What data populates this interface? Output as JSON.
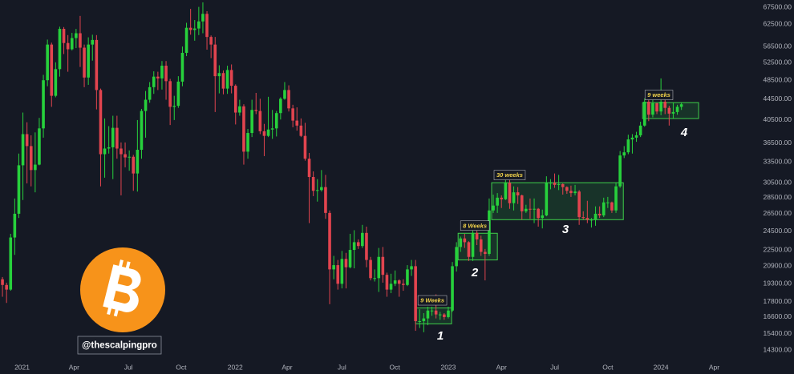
{
  "chart_data": {
    "type": "candlestick",
    "x": [
      0,
      1,
      2,
      3,
      4,
      5,
      6,
      7,
      8,
      9,
      10,
      11,
      12,
      13,
      14,
      15,
      16,
      17,
      18,
      19,
      20,
      21,
      22,
      23,
      24,
      25,
      26,
      27,
      28,
      29,
      30,
      31,
      32,
      33,
      34,
      35,
      36,
      37,
      38,
      39,
      40,
      41,
      42,
      43,
      44,
      45,
      46,
      47,
      48,
      49,
      50,
      51,
      52,
      53,
      54,
      55,
      56,
      57,
      58,
      59,
      60,
      61,
      62,
      63,
      64,
      65,
      66,
      67,
      68,
      69,
      70,
      71,
      72,
      73,
      74,
      75,
      76,
      77,
      78,
      79,
      80,
      81,
      82,
      83,
      84,
      85,
      86,
      87,
      88,
      89,
      90,
      91,
      92,
      93,
      94,
      95,
      96,
      97,
      98,
      99,
      100,
      101,
      102,
      103,
      104,
      105,
      106,
      107,
      108,
      109,
      110,
      111,
      112,
      113,
      114,
      115,
      116,
      117,
      118,
      119,
      120,
      121,
      122,
      123,
      124,
      125,
      126,
      127,
      128,
      129,
      130,
      131,
      132,
      133,
      134,
      135,
      136,
      137,
      138,
      139,
      140,
      141,
      142,
      143,
      144,
      145,
      146,
      147,
      148,
      149,
      150,
      151,
      152,
      153,
      154,
      155,
      156,
      157,
      158,
      159,
      160,
      161,
      162,
      163,
      164,
      165,
      166
    ],
    "candles": [
      [
        19700,
        19900,
        18200,
        19200
      ],
      [
        19200,
        19400,
        17700,
        18800
      ],
      [
        18800,
        24200,
        18700,
        23800
      ],
      [
        23800,
        28400,
        22000,
        26500
      ],
      [
        26500,
        34800,
        26000,
        33000
      ],
      [
        33000,
        41900,
        28200,
        38000
      ],
      [
        38000,
        40100,
        30400,
        36000
      ],
      [
        36000,
        37800,
        30000,
        32300
      ],
      [
        32300,
        38300,
        29200,
        33100
      ],
      [
        33100,
        40900,
        33000,
        39000
      ],
      [
        39000,
        49700,
        37400,
        48500
      ],
      [
        48500,
        58300,
        47200,
        57000
      ],
      [
        57000,
        57500,
        43000,
        45200
      ],
      [
        45200,
        52600,
        44900,
        51000
      ],
      [
        51000,
        61800,
        49300,
        61200
      ],
      [
        61200,
        61700,
        54600,
        57400
      ],
      [
        57400,
        59500,
        50400,
        55800
      ],
      [
        55800,
        60100,
        55500,
        58700
      ],
      [
        58700,
        61200,
        56100,
        60000
      ],
      [
        60000,
        64900,
        51500,
        56200
      ],
      [
        56200,
        57000,
        47000,
        49100
      ],
      [
        49100,
        58900,
        47500,
        57000
      ],
      [
        57000,
        59600,
        53000,
        58200
      ],
      [
        58200,
        59500,
        42500,
        46400
      ],
      [
        46400,
        46700,
        30000,
        34700
      ],
      [
        34700,
        40800,
        31200,
        35600
      ],
      [
        35600,
        39400,
        34800,
        35800
      ],
      [
        35800,
        41300,
        31000,
        39100
      ],
      [
        39100,
        41300,
        34000,
        35600
      ],
      [
        35600,
        36600,
        28800,
        34700
      ],
      [
        34700,
        36600,
        32700,
        34200
      ],
      [
        34200,
        35300,
        32200,
        34300
      ],
      [
        34300,
        34600,
        29400,
        31800
      ],
      [
        31800,
        40500,
        29300,
        35400
      ],
      [
        35400,
        42600,
        34000,
        42200
      ],
      [
        42200,
        46200,
        37400,
        44400
      ],
      [
        44400,
        48100,
        43800,
        47000
      ],
      [
        47000,
        50500,
        45600,
        49300
      ],
      [
        49300,
        50400,
        46400,
        48900
      ],
      [
        48900,
        52900,
        46500,
        51800
      ],
      [
        51800,
        52900,
        44400,
        48300
      ],
      [
        48300,
        48800,
        39600,
        43000
      ],
      [
        43000,
        45200,
        40500,
        43200
      ],
      [
        43200,
        49400,
        42800,
        48200
      ],
      [
        48200,
        56500,
        47200,
        54900
      ],
      [
        54900,
        62900,
        54100,
        61500
      ],
      [
        61500,
        67000,
        59600,
        60900
      ],
      [
        60900,
        63700,
        58000,
        61300
      ],
      [
        61300,
        67600,
        59500,
        63300
      ],
      [
        63300,
        69000,
        60000,
        65500
      ],
      [
        65500,
        66300,
        55700,
        59000
      ],
      [
        59000,
        59400,
        53600,
        57000
      ],
      [
        57000,
        59000,
        42000,
        49400
      ],
      [
        49400,
        51900,
        45700,
        50100
      ],
      [
        50100,
        50700,
        45500,
        46700
      ],
      [
        46700,
        51800,
        45600,
        50800
      ],
      [
        50800,
        52100,
        45700,
        47300
      ],
      [
        47300,
        47600,
        39700,
        41900
      ],
      [
        41900,
        44400,
        41300,
        43100
      ],
      [
        43100,
        43500,
        33100,
        35100
      ],
      [
        35100,
        38900,
        34000,
        38200
      ],
      [
        38200,
        44400,
        37500,
        42400
      ],
      [
        42400,
        45800,
        41600,
        42200
      ],
      [
        42200,
        44600,
        38000,
        38500
      ],
      [
        38500,
        39800,
        34400,
        37700
      ],
      [
        37700,
        45000,
        37500,
        38800
      ],
      [
        38800,
        42400,
        37200,
        39000
      ],
      [
        39000,
        42200,
        37600,
        41800
      ],
      [
        41800,
        44900,
        40600,
        44600
      ],
      [
        44600,
        48100,
        44400,
        46400
      ],
      [
        46400,
        47400,
        42100,
        42700
      ],
      [
        42700,
        43400,
        39200,
        40400
      ],
      [
        40400,
        42900,
        38600,
        39500
      ],
      [
        39500,
        40800,
        37500,
        37700
      ],
      [
        37700,
        40000,
        33700,
        34000
      ],
      [
        34000,
        34900,
        25400,
        31300
      ],
      [
        31300,
        32100,
        28700,
        29400
      ],
      [
        29400,
        31000,
        28000,
        29500
      ],
      [
        29500,
        32300,
        29300,
        29900
      ],
      [
        29900,
        31600,
        25900,
        26600
      ],
      [
        26600,
        26900,
        17600,
        20600
      ],
      [
        20600,
        21900,
        19700,
        21000
      ],
      [
        21000,
        21500,
        18800,
        19300
      ],
      [
        19300,
        22400,
        18900,
        21600
      ],
      [
        21600,
        22200,
        18900,
        20800
      ],
      [
        20800,
        24200,
        20700,
        22500
      ],
      [
        22500,
        24600,
        20700,
        23300
      ],
      [
        23300,
        23600,
        22600,
        22900
      ],
      [
        22900,
        25200,
        22700,
        24300
      ],
      [
        24300,
        25000,
        20800,
        21500
      ],
      [
        21500,
        21800,
        19600,
        19800
      ],
      [
        19800,
        20600,
        19500,
        19800
      ],
      [
        19800,
        22700,
        18600,
        21800
      ],
      [
        21800,
        22800,
        19400,
        20100
      ],
      [
        20100,
        20300,
        18200,
        18800
      ],
      [
        18800,
        20200,
        18500,
        19300
      ],
      [
        19300,
        20500,
        19100,
        19600
      ],
      [
        19600,
        19700,
        18200,
        19300
      ],
      [
        19300,
        19700,
        18700,
        19200
      ],
      [
        19200,
        21000,
        19100,
        20600
      ],
      [
        20600,
        21500,
        20000,
        20900
      ],
      [
        20900,
        21500,
        15600,
        16300
      ],
      [
        16300,
        17200,
        15800,
        16300
      ],
      [
        16300,
        16900,
        15500,
        16500
      ],
      [
        16500,
        17400,
        16000,
        17100
      ],
      [
        17100,
        17400,
        16700,
        17100
      ],
      [
        17100,
        18400,
        16500,
        16800
      ],
      [
        16800,
        17000,
        16400,
        16800
      ],
      [
        16800,
        16900,
        16400,
        16600
      ],
      [
        16600,
        17400,
        16500,
        17100
      ],
      [
        17100,
        21300,
        17000,
        20900
      ],
      [
        20900,
        23300,
        20400,
        22800
      ],
      [
        22800,
        23900,
        22300,
        23700
      ],
      [
        23700,
        24200,
        22700,
        23300
      ],
      [
        23300,
        23400,
        21400,
        21800
      ],
      [
        21800,
        25200,
        21400,
        24300
      ],
      [
        24300,
        25000,
        23000,
        23600
      ],
      [
        23600,
        24000,
        21900,
        22300
      ],
      [
        22300,
        22600,
        19600,
        22100
      ],
      [
        22100,
        28400,
        21900,
        26900
      ],
      [
        26900,
        28900,
        26600,
        27500
      ],
      [
        27500,
        29100,
        26600,
        28500
      ],
      [
        28500,
        28800,
        27200,
        28300
      ],
      [
        28300,
        31000,
        28200,
        30500
      ],
      [
        30500,
        30900,
        27100,
        27800
      ],
      [
        27800,
        30000,
        26900,
        29200
      ],
      [
        29200,
        29900,
        27700,
        28800
      ],
      [
        28800,
        28900,
        25800,
        26800
      ],
      [
        26800,
        27600,
        26600,
        27100
      ],
      [
        27100,
        28400,
        25900,
        27000
      ],
      [
        27000,
        28400,
        25400,
        27100
      ],
      [
        27100,
        27200,
        25000,
        26000
      ],
      [
        26000,
        27000,
        24800,
        26300
      ],
      [
        26300,
        31400,
        26200,
        30500
      ],
      [
        30500,
        31000,
        29600,
        30500
      ],
      [
        30500,
        31800,
        29800,
        30200
      ],
      [
        30200,
        31600,
        29500,
        30300
      ],
      [
        30300,
        30400,
        28900,
        29900
      ],
      [
        29900,
        30000,
        29000,
        29400
      ],
      [
        29400,
        30100,
        28600,
        29100
      ],
      [
        29100,
        30200,
        28800,
        29300
      ],
      [
        29300,
        29500,
        25200,
        26100
      ],
      [
        26100,
        26800,
        25800,
        26000
      ],
      [
        26000,
        28100,
        25400,
        25800
      ],
      [
        25800,
        26000,
        24900,
        25800
      ],
      [
        25800,
        27400,
        25100,
        26500
      ],
      [
        26500,
        27400,
        26000,
        26300
      ],
      [
        26300,
        28500,
        26100,
        27900
      ],
      [
        27900,
        28600,
        27200,
        27900
      ],
      [
        27900,
        28000,
        26600,
        26900
      ],
      [
        26900,
        30500,
        26600,
        30000
      ],
      [
        30000,
        35200,
        29800,
        34500
      ],
      [
        34500,
        36000,
        34100,
        35000
      ],
      [
        35000,
        37900,
        34700,
        37100
      ],
      [
        37100,
        38000,
        34800,
        37400
      ],
      [
        37400,
        38400,
        36700,
        37800
      ],
      [
        37800,
        40200,
        37500,
        39500
      ],
      [
        39500,
        44700,
        39300,
        44000
      ],
      [
        44000,
        44400,
        40300,
        41500
      ],
      [
        41500,
        44400,
        41000,
        43700
      ],
      [
        43700,
        43800,
        41600,
        42100
      ],
      [
        42100,
        48900,
        41400,
        44000
      ],
      [
        44000,
        44500,
        41600,
        42800
      ],
      [
        42800,
        43200,
        39500,
        41700
      ],
      [
        41700,
        43800,
        40700,
        42000
      ],
      [
        42000,
        43400,
        41500,
        43000
      ],
      [
        43000,
        43800,
        42400,
        43500
      ]
    ],
    "up_color": "#27d13c",
    "down_color": "#e2444f",
    "xlim": [
      -0.6,
      184.7
    ],
    "xticks": [
      {
        "value": 4.8,
        "label": "2021"
      },
      {
        "value": 17.5,
        "label": "Apr"
      },
      {
        "value": 30.8,
        "label": "Jul"
      },
      {
        "value": 43.7,
        "label": "Oct"
      },
      {
        "value": 56.9,
        "label": "2022"
      },
      {
        "value": 69.6,
        "label": "Apr"
      },
      {
        "value": 83,
        "label": "Jul"
      },
      {
        "value": 95.9,
        "label": "Oct"
      },
      {
        "value": 109,
        "label": "2023"
      },
      {
        "value": 122,
        "label": "Apr"
      },
      {
        "value": 135,
        "label": "Jul"
      },
      {
        "value": 148,
        "label": "Oct"
      },
      {
        "value": 161,
        "label": "2024"
      },
      {
        "value": 174,
        "label": "Apr"
      }
    ],
    "ylim": [
      12830,
      69740
    ],
    "log_scale": true,
    "grid": false,
    "yticks": [
      {
        "value": 67500,
        "label": "67500.00"
      },
      {
        "value": 62500,
        "label": "62500.00"
      },
      {
        "value": 56500,
        "label": "56500.00"
      },
      {
        "value": 52500,
        "label": "52500.00"
      },
      {
        "value": 48500,
        "label": "48500.00"
      },
      {
        "value": 44500,
        "label": "44500.00"
      },
      {
        "value": 40500,
        "label": "40500.00"
      },
      {
        "value": 36500,
        "label": "36500.00"
      },
      {
        "value": 33500,
        "label": "33500.00"
      },
      {
        "value": 30500,
        "label": "30500.00"
      },
      {
        "value": 28500,
        "label": "28500.00"
      },
      {
        "value": 26500,
        "label": "26500.00"
      },
      {
        "value": 24500,
        "label": "24500.00"
      },
      {
        "value": 22500,
        "label": "22500.00"
      },
      {
        "value": 20900,
        "label": "20900.00"
      },
      {
        "value": 19300,
        "label": "19300.00"
      },
      {
        "value": 17800,
        "label": "17800.00"
      },
      {
        "value": 16600,
        "label": "16600.00"
      },
      {
        "value": 15400,
        "label": "15400.00"
      },
      {
        "value": 14300,
        "label": "14300.00"
      }
    ],
    "zones": [
      {
        "label": "9 Weeks",
        "number": "1",
        "x": [
          101,
          109.8
        ],
        "y": [
          16100,
          17300
        ]
      },
      {
        "label": "8 Weeks",
        "number": "2",
        "x": [
          111.4,
          121
        ],
        "y": [
          21500,
          24260
        ]
      },
      {
        "label": "30 weeks",
        "number": "3",
        "x": [
          119.6,
          151.8
        ],
        "y": [
          25800,
          30500
        ]
      },
      {
        "label": "9 weeks",
        "number": "4",
        "x": [
          156.5,
          170.2
        ],
        "y": [
          40780,
          43830
        ]
      }
    ],
    "watermark": "@thescalpingpro"
  }
}
